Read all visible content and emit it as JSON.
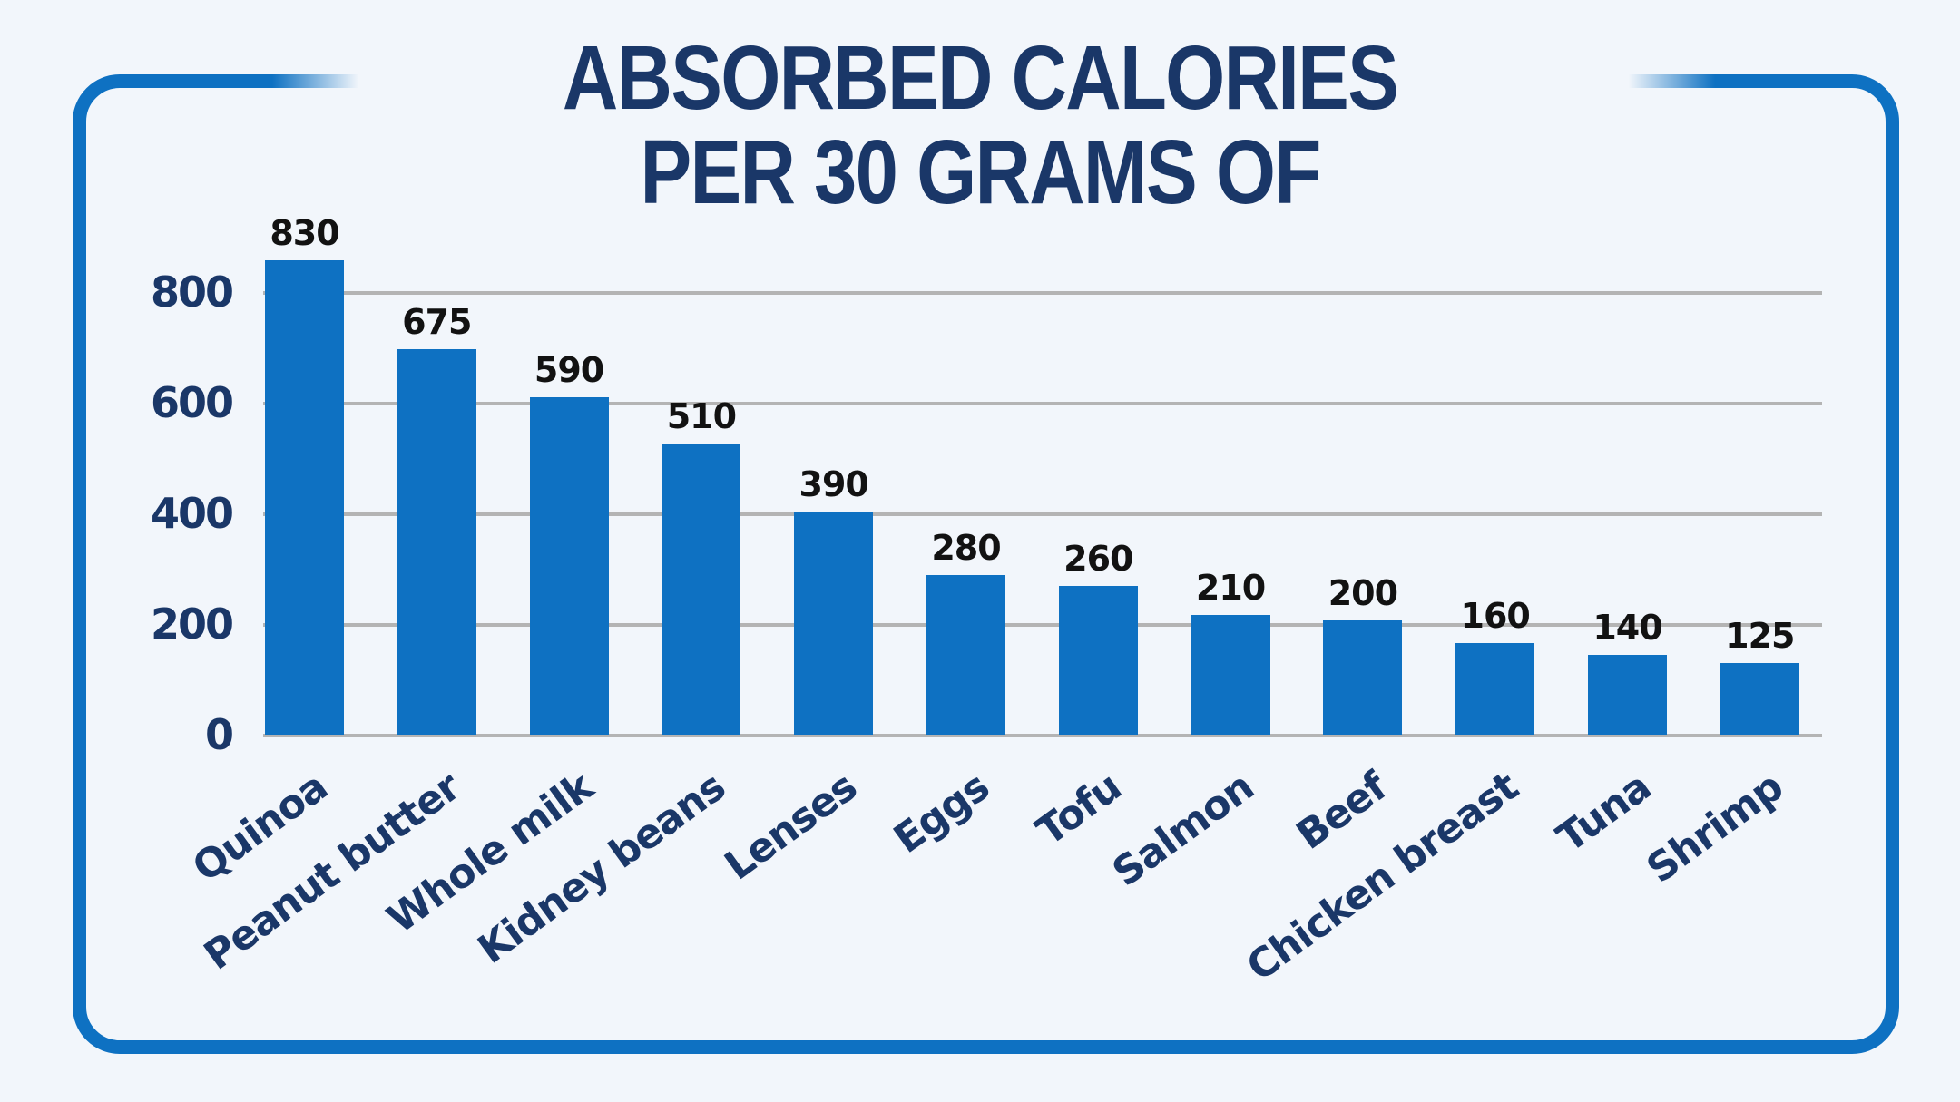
{
  "chart_data": {
    "type": "bar",
    "title": "ABSORBED CALORIES PER 30 GRAMS OF",
    "title_lines": [
      "ABSORBED CALORIES",
      "PER 30 GRAMS OF"
    ],
    "categories": [
      "Quinoa",
      "Peanut butter",
      "Whole milk",
      "Kidney beans",
      "Lenses",
      "Eggs",
      "Tofu",
      "Salmon",
      "Beef",
      "Chicken breast",
      "Tuna",
      "Shrimp"
    ],
    "values": [
      830,
      675,
      590,
      510,
      390,
      280,
      260,
      210,
      200,
      160,
      140,
      125
    ],
    "xlabel": "",
    "ylabel": "",
    "y_ticks": [
      0,
      200,
      400,
      600,
      800
    ],
    "ylim": [
      0,
      880
    ],
    "grid": true,
    "legend": false,
    "colors": {
      "bar": "#0e71c2",
      "frame_border": "#0e71c2",
      "title_text": "#1a3768",
      "axis_text": "#1a3768",
      "value_label_text": "#121212",
      "gridline": "#b4b4b4",
      "background": "#f2f6fb"
    }
  }
}
